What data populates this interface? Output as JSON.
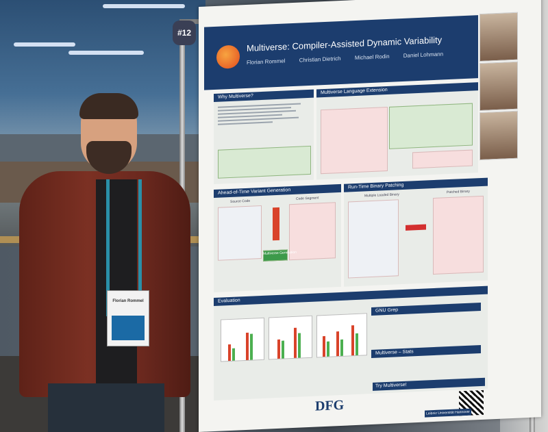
{
  "poster": {
    "number_tag": "#12",
    "title": "Multiverse: Compiler-Assisted Dynamic Variability",
    "authors": [
      "Florian Rommel",
      "Christian Dietrich",
      "Michael Rodin",
      "Daniel Lohmann"
    ],
    "sections": {
      "why": "Why Multiverse?",
      "language": "Multiverse Language Extension",
      "aot": "Ahead-of-Time Variant Generation",
      "runtime": "Run-Time Binary Patching",
      "evaluation": "Evaluation",
      "gnu_grep": "GNU Grep",
      "stats": "Multiverse – Stats",
      "try": "Try Multiverse!"
    },
    "aot_labels": {
      "source": "Source Code",
      "segment": "Code Segment",
      "multiverse": "Multiverse",
      "generation": "Multiverse Generation"
    },
    "runtime_labels": {
      "multiple": "Multiple Loaded Binary",
      "patched": "Patched Binary"
    },
    "funder": "DFG",
    "university": "Leibniz Universität Hannover"
  },
  "badge": {
    "name": "Florian Rommel"
  },
  "colors": {
    "poster_blue": "#1c3d6e",
    "jacket": "#7b3023",
    "chart_red": "#d9432a",
    "chart_green": "#4caf50"
  }
}
